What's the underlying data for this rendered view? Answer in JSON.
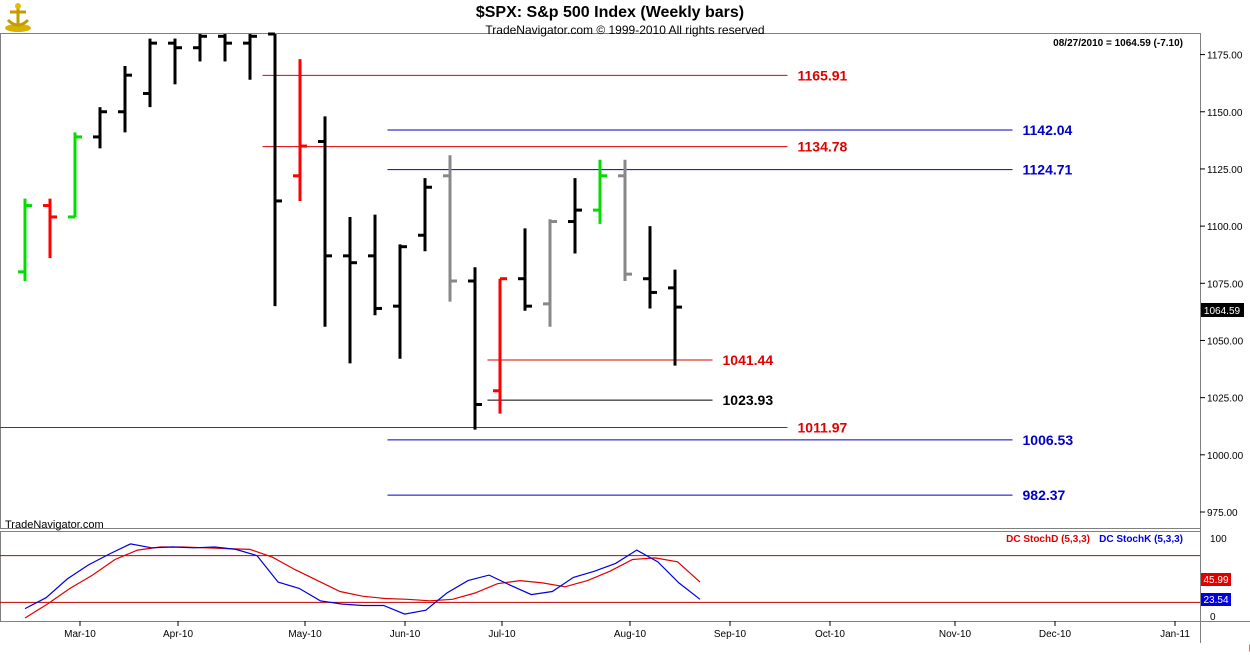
{
  "header": {
    "title": "$SPX:  S&p 500 Index  (Weekly bars)",
    "copyright": "TradeNavigator.com © 1999-2010 All rights reserved",
    "last_info": "08/27/2010 = 1064.59 (-7.10)",
    "watermark": "TradeNavigator.com"
  },
  "price_panel": {
    "last_price": "1064.59",
    "y_ticks": [
      "1175.00",
      "1150.00",
      "1125.00",
      "1100.00",
      "1075.00",
      "1050.00",
      "1025.00",
      "1000.00",
      "975.00"
    ]
  },
  "stoch_panel": {
    "legend_d": "DC StochD (5,3,3)",
    "legend_k": "DC StochK (5,3,3)",
    "y_tick_top": "100",
    "y_tick_bottom": "0",
    "stochd_value": "45.99",
    "stochk_value": "23.54"
  },
  "x_axis": {
    "months": [
      "Mar-10",
      "Apr-10",
      "May-10",
      "Jun-10",
      "Jul-10",
      "Aug-10",
      "Sep-10",
      "Oct-10",
      "Nov-10",
      "Dec-10",
      "Jan-11"
    ]
  },
  "colors": {
    "bar_black": "#000000",
    "bar_red": "#ff0000",
    "bar_green": "#00dd00",
    "bar_gray": "#888888",
    "level_red": "#e00000",
    "level_blue": "#0000c8",
    "stoch_d": "#e00000",
    "stoch_k": "#0000e0"
  },
  "chart_data": {
    "type": "ohlc",
    "title": "$SPX:  S&p 500 Index  (Weekly bars)",
    "ylim": [
      968,
      1184
    ],
    "weeks": [
      "02/26",
      "03/05",
      "03/12",
      "03/19",
      "03/26",
      "04/02",
      "04/09",
      "04/16",
      "04/23",
      "04/30",
      "05/07",
      "05/14",
      "05/21",
      "05/28",
      "06/04",
      "06/11",
      "06/18",
      "06/25",
      "07/02",
      "07/09",
      "07/16",
      "07/23",
      "07/30",
      "08/06",
      "08/13",
      "08/20",
      "08/27"
    ],
    "bars": [
      {
        "o": 1080,
        "h": 1112,
        "l": 1076,
        "c": 1109,
        "color": "green"
      },
      {
        "o": 1109,
        "h": 1112,
        "l": 1086,
        "c": 1104,
        "color": "red"
      },
      {
        "o": 1104,
        "h": 1141,
        "l": 1104,
        "c": 1139,
        "color": "green"
      },
      {
        "o": 1139,
        "h": 1152,
        "l": 1134,
        "c": 1150,
        "color": "black"
      },
      {
        "o": 1150,
        "h": 1170,
        "l": 1141,
        "c": 1166,
        "color": "black"
      },
      {
        "o": 1158,
        "h": 1182,
        "l": 1152,
        "c": 1180,
        "color": "black"
      },
      {
        "o": 1180,
        "h": 1182,
        "l": 1162,
        "c": 1178,
        "color": "black"
      },
      {
        "o": 1178,
        "h": 1184,
        "l": 1172,
        "c": 1183,
        "color": "black"
      },
      {
        "o": 1183,
        "h": 1184,
        "l": 1172,
        "c": 1180,
        "color": "black"
      },
      {
        "o": 1180,
        "h": 1184,
        "l": 1164,
        "c": 1183,
        "color": "black"
      },
      {
        "o": 1186,
        "h": 1184,
        "l": 1065,
        "c": 1111,
        "color": "black"
      },
      {
        "o": 1122,
        "h": 1173,
        "l": 1111,
        "c": 1135,
        "color": "red"
      },
      {
        "o": 1137,
        "h": 1148,
        "l": 1056,
        "c": 1087,
        "color": "black"
      },
      {
        "o": 1087,
        "h": 1104,
        "l": 1040,
        "c": 1084,
        "color": "black"
      },
      {
        "o": 1087,
        "h": 1105,
        "l": 1061,
        "c": 1064,
        "color": "black"
      },
      {
        "o": 1065,
        "h": 1092,
        "l": 1042,
        "c": 1091,
        "color": "black"
      },
      {
        "o": 1096,
        "h": 1121,
        "l": 1089,
        "c": 1117,
        "color": "black"
      },
      {
        "o": 1122,
        "h": 1131,
        "l": 1067,
        "c": 1076,
        "color": "gray"
      },
      {
        "o": 1076,
        "h": 1082,
        "l": 1011,
        "c": 1022,
        "color": "black"
      },
      {
        "o": 1028,
        "h": 1077,
        "l": 1018,
        "c": 1077,
        "color": "red"
      },
      {
        "o": 1077,
        "h": 1099,
        "l": 1063,
        "c": 1065,
        "color": "black"
      },
      {
        "o": 1066,
        "h": 1103,
        "l": 1056,
        "c": 1102,
        "color": "gray"
      },
      {
        "o": 1102,
        "h": 1121,
        "l": 1088,
        "c": 1107,
        "color": "black"
      },
      {
        "o": 1107,
        "h": 1129,
        "l": 1101,
        "c": 1122,
        "color": "green"
      },
      {
        "o": 1122,
        "h": 1129,
        "l": 1076,
        "c": 1079,
        "color": "gray"
      },
      {
        "o": 1077,
        "h": 1100,
        "l": 1064,
        "c": 1071,
        "color": "black"
      },
      {
        "o": 1073,
        "h": 1081,
        "l": 1039,
        "c": 1064.59,
        "color": "black"
      }
    ],
    "levels": [
      {
        "label": "1165.91",
        "value": 1165.91,
        "color": "red",
        "from_week": 9.5,
        "to_week": 30.5
      },
      {
        "label": "1142.04",
        "value": 1142.04,
        "color": "blue",
        "from_week": 14.5,
        "to_week": 39.5
      },
      {
        "label": "1134.78",
        "value": 1134.78,
        "color": "red",
        "from_week": 9.5,
        "to_week": 30.5
      },
      {
        "label": "1124.71",
        "value": 1124.71,
        "color": "blue",
        "from_week": 14.5,
        "to_week": 39.5
      },
      {
        "label": "1041.44",
        "value": 1041.44,
        "color": "red",
        "from_week": 18.5,
        "to_week": 27.5
      },
      {
        "label": "1023.93",
        "value": 1023.93,
        "color": "black",
        "from_week": 18.5,
        "to_week": 27.5
      },
      {
        "label": "1011.97",
        "value": 1011.97,
        "color": "red",
        "from_week": -1,
        "to_week": 30.5
      },
      {
        "label": "1006.53",
        "value": 1006.53,
        "color": "blue",
        "from_week": 14.5,
        "to_week": 39.5
      },
      {
        "label": "982.37",
        "value": 982.37,
        "color": "blue",
        "from_week": 14.5,
        "to_week": 39.5
      }
    ],
    "stochastic": {
      "ylim": [
        0,
        100
      ],
      "reference_lines": [
        80,
        20
      ],
      "series": [
        {
          "name": "DC StochD (5,3,3)",
          "color": "red",
          "values": [
            0,
            18,
            38,
            55,
            75,
            87,
            91,
            91,
            90,
            89,
            88,
            78,
            62,
            48,
            34,
            28,
            25,
            24,
            22,
            24,
            32,
            44,
            48,
            45,
            40,
            48,
            60,
            75,
            77,
            72,
            46
          ]
        },
        {
          "name": "DC StochK (5,3,3)",
          "color": "blue",
          "values": [
            12,
            26,
            50,
            68,
            82,
            95,
            90,
            91,
            90,
            91,
            88,
            80,
            46,
            38,
            22,
            18,
            16,
            16,
            5,
            10,
            32,
            48,
            55,
            42,
            30,
            34,
            52,
            60,
            70,
            87,
            72,
            45,
            24
          ]
        }
      ]
    },
    "x_months": [
      "Mar-10",
      "Apr-10",
      "May-10",
      "Jun-10",
      "Jul-10",
      "Aug-10",
      "Sep-10",
      "Oct-10",
      "Nov-10",
      "Dec-10",
      "Jan-11"
    ]
  }
}
